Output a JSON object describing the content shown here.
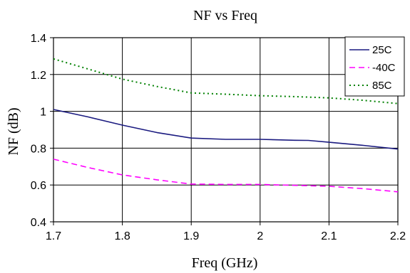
{
  "chart_data": {
    "type": "line",
    "title": "NF  vs Freq",
    "xlabel": "Freq (GHz)",
    "ylabel": "NF (dB)",
    "xlim": [
      1.7,
      2.2
    ],
    "ylim": [
      0.4,
      1.4
    ],
    "x_ticks": [
      "1.7",
      "1.8",
      "1.9",
      "2",
      "2.1",
      "2.2"
    ],
    "y_ticks": [
      "0.4",
      "0.6",
      "0.8",
      "1",
      "1.2",
      "1.4"
    ],
    "grid": true,
    "legend_position": "top-right",
    "series": [
      {
        "name": "25C",
        "color": "#1a1a80",
        "style": "solid",
        "points": [
          [
            1.7,
            1.01
          ],
          [
            1.75,
            0.97
          ],
          [
            1.8,
            0.925
          ],
          [
            1.85,
            0.885
          ],
          [
            1.9,
            0.855
          ],
          [
            1.95,
            0.848
          ],
          [
            2.0,
            0.848
          ],
          [
            2.05,
            0.843
          ],
          [
            2.07,
            0.842
          ],
          [
            2.1,
            0.832
          ],
          [
            2.15,
            0.815
          ],
          [
            2.2,
            0.795
          ]
        ]
      },
      {
        "name": "-40C",
        "color": "#ff00ff",
        "style": "dashed",
        "points": [
          [
            1.7,
            0.74
          ],
          [
            1.75,
            0.695
          ],
          [
            1.8,
            0.655
          ],
          [
            1.85,
            0.628
          ],
          [
            1.9,
            0.605
          ],
          [
            1.95,
            0.603
          ],
          [
            2.0,
            0.603
          ],
          [
            2.05,
            0.598
          ],
          [
            2.1,
            0.593
          ],
          [
            2.15,
            0.58
          ],
          [
            2.2,
            0.563
          ]
        ]
      },
      {
        "name": "85C",
        "color": "#008000",
        "style": "dotted",
        "points": [
          [
            1.7,
            1.285
          ],
          [
            1.75,
            1.23
          ],
          [
            1.8,
            1.175
          ],
          [
            1.85,
            1.135
          ],
          [
            1.9,
            1.1
          ],
          [
            1.95,
            1.093
          ],
          [
            2.0,
            1.085
          ],
          [
            2.05,
            1.08
          ],
          [
            2.1,
            1.073
          ],
          [
            2.15,
            1.06
          ],
          [
            2.2,
            1.042
          ]
        ]
      }
    ]
  }
}
